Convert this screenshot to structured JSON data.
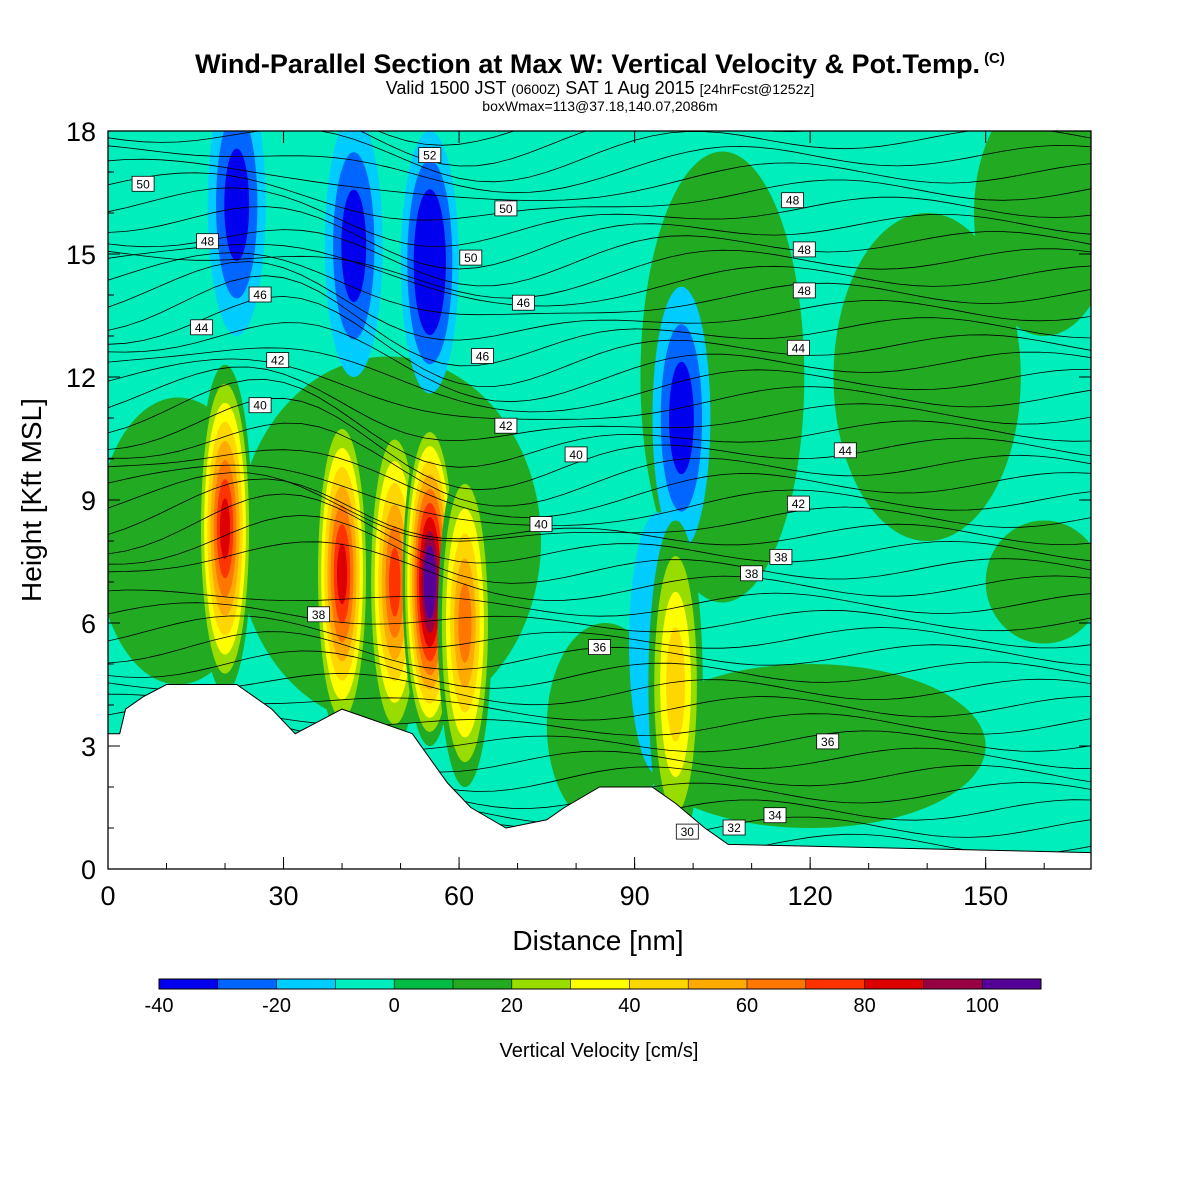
{
  "header": {
    "title": "Wind-Parallel Section at Max W: Vertical Velocity & Pot.Temp.",
    "copyright": "(C)",
    "valid_prefix": "Valid 1500 JST",
    "valid_utc": "(0600Z)",
    "valid_date": "SAT 1 Aug 2015",
    "forecast": "[24hrFcst@1252z]",
    "boxmax": "boxWmax=113@37.18,140.07,2086m"
  },
  "chart_data": {
    "type": "heatmap",
    "xlabel": "Distance [nm]",
    "ylabel": "Height [Kft MSL]",
    "xlim": [
      0,
      168
    ],
    "ylim": [
      0,
      18
    ],
    "x_ticks": [
      "0",
      "30",
      "60",
      "90",
      "120",
      "150"
    ],
    "y_ticks": [
      "0",
      "3",
      "6",
      "9",
      "12",
      "15",
      "18"
    ],
    "colorbar": {
      "title": "Vertical Velocity [cm/s]",
      "levels": [
        -40,
        -30,
        -20,
        -10,
        0,
        10,
        20,
        30,
        40,
        50,
        60,
        70,
        80,
        90,
        100,
        110
      ],
      "tick_labels": [
        "-40",
        "-20",
        "0",
        "20",
        "40",
        "60",
        "80",
        "100"
      ],
      "colors": [
        "#0000ee",
        "#0066ff",
        "#00ccff",
        "#00eebb",
        "#00bb44",
        "#22aa22",
        "#99dd00",
        "#ffff00",
        "#ffd700",
        "#ffaa00",
        "#ff7700",
        "#ff3300",
        "#dd0000",
        "#990044",
        "#550099"
      ]
    },
    "background_level": "#00eebb",
    "updraft_cores": [
      {
        "x": 20,
        "y": 8.3,
        "peak": 80
      },
      {
        "x": 40,
        "y": 7.2,
        "peak": 80
      },
      {
        "x": 49,
        "y": 7.0,
        "peak": 70
      },
      {
        "x": 55,
        "y": 7.0,
        "peak": 110
      },
      {
        "x": 61,
        "y": 6.0,
        "peak": 60
      },
      {
        "x": 97,
        "y": 4.5,
        "peak": 40
      }
    ],
    "downdraft_cores": [
      {
        "x": 22,
        "y": 16.2,
        "peak": -30
      },
      {
        "x": 42,
        "y": 15.2,
        "peak": -30
      },
      {
        "x": 55,
        "y": 14.8,
        "peak": -40
      },
      {
        "x": 98,
        "y": 11.0,
        "peak": -30
      },
      {
        "x": 94,
        "y": 5.5,
        "peak": -10
      }
    ],
    "terrain_kft": [
      [
        0,
        3.3
      ],
      [
        2,
        3.3
      ],
      [
        3,
        3.9
      ],
      [
        6,
        4.2
      ],
      [
        10,
        4.5
      ],
      [
        22,
        4.5
      ],
      [
        25,
        4.2
      ],
      [
        28,
        3.9
      ],
      [
        32,
        3.3
      ],
      [
        36,
        3.6
      ],
      [
        40,
        3.9
      ],
      [
        46,
        3.6
      ],
      [
        52,
        3.3
      ],
      [
        55,
        2.7
      ],
      [
        58,
        2.1
      ],
      [
        62,
        1.5
      ],
      [
        68,
        1.0
      ],
      [
        75,
        1.2
      ],
      [
        78,
        1.5
      ],
      [
        84,
        2.0
      ],
      [
        93,
        2.0
      ],
      [
        97,
        1.6
      ],
      [
        102,
        1.0
      ],
      [
        106,
        0.6
      ],
      [
        168,
        0.4
      ]
    ],
    "theta_contour_labels": [
      "50",
      "52",
      "50",
      "48",
      "48",
      "50",
      "48",
      "46",
      "48",
      "46",
      "46",
      "44",
      "44",
      "42",
      "44",
      "40",
      "42",
      "40",
      "42",
      "40",
      "38",
      "38",
      "38",
      "36",
      "36",
      "34",
      "32",
      "30"
    ]
  }
}
